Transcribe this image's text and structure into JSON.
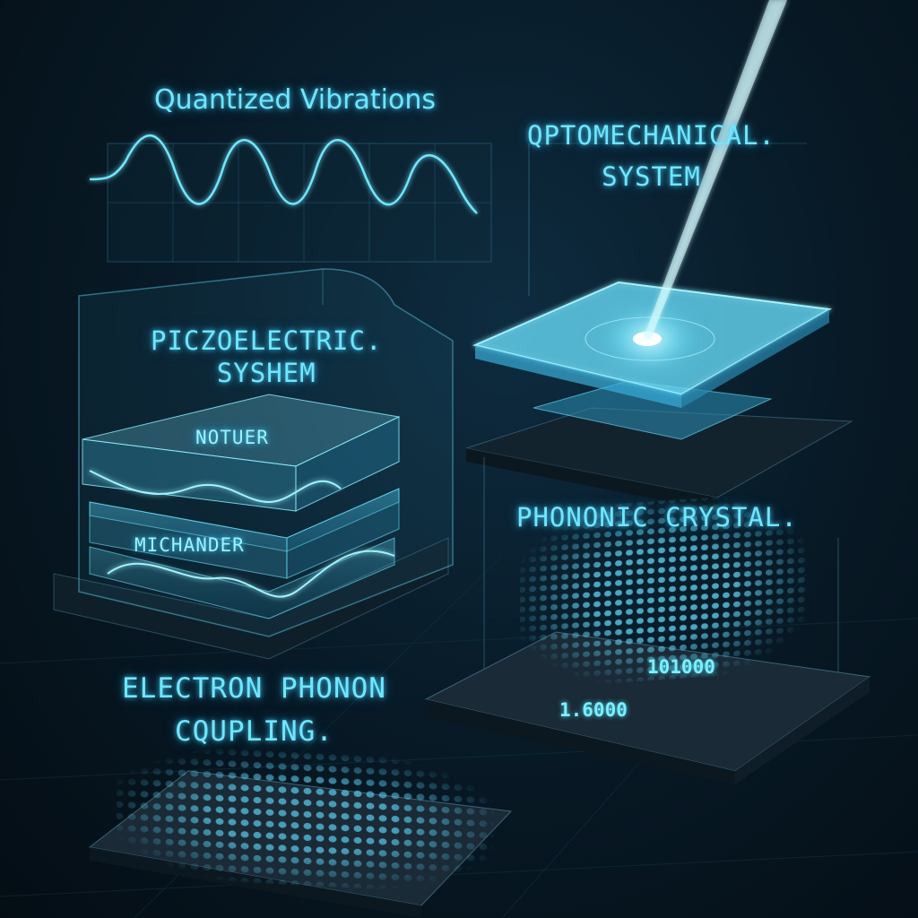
{
  "panels": {
    "quantized_vibrations": {
      "title": "Quantized Vibrations"
    },
    "optomechanical": {
      "title_line1": "QPTOMECHANICAL.",
      "title_line2": "SYSTEM"
    },
    "piezoelectric": {
      "title_line1": "PICZOELECTRIC.",
      "title_line2": "SYSHEM",
      "layer_top_label": "NOTUER",
      "layer_bottom_label": "MICHANDER"
    },
    "phononic_crystal": {
      "title": "PHONONIC CRYSTAL.",
      "readout_1": "101000",
      "readout_2": "1.6000"
    },
    "electron_phonon": {
      "title_line1": "ELECTRON PHONON",
      "title_line2": "CQUPLING."
    }
  },
  "colors": {
    "background": "#061520",
    "glow": "#6fe6ff",
    "beam": "#9ff4ff",
    "platform": "#1b2c38"
  }
}
